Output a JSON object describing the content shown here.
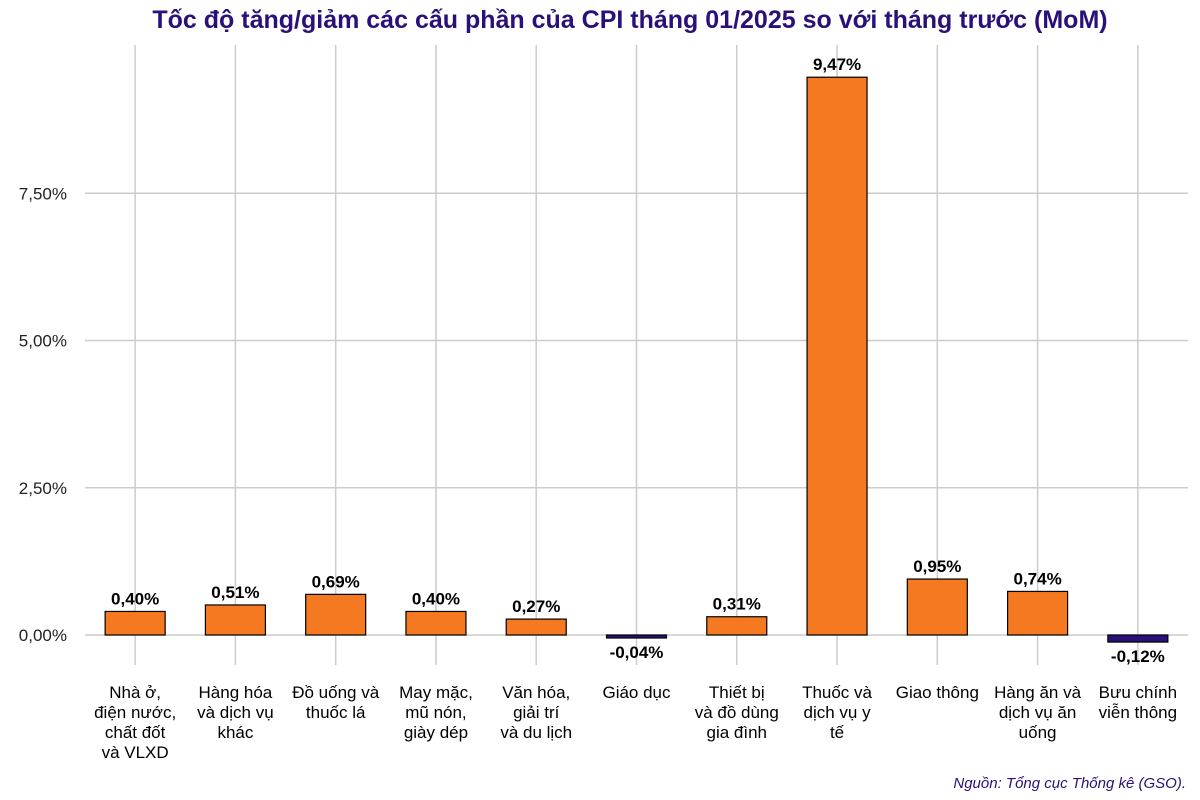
{
  "chart_data": {
    "type": "bar",
    "title": "Tốc độ tăng/giảm các cấu phần của CPI tháng 01/2025 so với tháng trước (MoM)",
    "xlabel": "",
    "ylabel": "",
    "ylim": [
      -0.5,
      10.0
    ],
    "yticks": [
      0,
      2.5,
      5,
      7.5
    ],
    "ytick_labels": [
      "0,00%",
      "2,50%",
      "5,00%",
      "7,50%"
    ],
    "grid": true,
    "legend": "none",
    "categories": [
      "Nhà ở, điện nước, chất đốt và VLXD",
      "Hàng hóa và dịch vụ khác",
      "Đồ uống và thuốc lá",
      "May mặc, mũ nón, giày dép",
      "Văn hóa, giải trí và du lịch",
      "Giáo dục",
      "Thiết bị và đồ dùng gia đình",
      "Thuốc và dịch vụ y tế",
      "Giao thông",
      "Hàng ăn và dịch vụ ăn uống",
      "Bưu chính viễn thông"
    ],
    "category_lines": [
      [
        "Nhà ở,",
        "điện nước,",
        "chất đốt",
        "và VLXD"
      ],
      [
        "Hàng hóa",
        "và dịch vụ",
        "khác"
      ],
      [
        "Đồ uống và",
        "thuốc lá"
      ],
      [
        "May mặc,",
        "mũ nón,",
        "giày dép"
      ],
      [
        "Văn hóa,",
        "giải trí",
        "và du lịch"
      ],
      [
        "Giáo dục"
      ],
      [
        "Thiết bị",
        "và đồ dùng",
        "gia đình"
      ],
      [
        "Thuốc và",
        "dịch vụ y",
        "tế"
      ],
      [
        "Giao thông"
      ],
      [
        "Hàng ăn và",
        "dịch vụ ăn",
        "uống"
      ],
      [
        "Bưu chính",
        "viễn thông"
      ]
    ],
    "values": [
      0.4,
      0.51,
      0.69,
      0.4,
      0.27,
      -0.04,
      0.31,
      9.47,
      0.95,
      0.74,
      -0.12
    ],
    "value_labels": [
      "0,40%",
      "0,51%",
      "0,69%",
      "0,40%",
      "0,27%",
      "-0,04%",
      "0,31%",
      "9,47%",
      "0,95%",
      "0,74%",
      "-0,12%"
    ],
    "colors": {
      "positive": "#f47920",
      "negative": "#2a1078",
      "grid": "#cccccc",
      "title": "#2a1078"
    }
  },
  "source": "Nguồn: Tổng cục Thống kê (GSO)."
}
